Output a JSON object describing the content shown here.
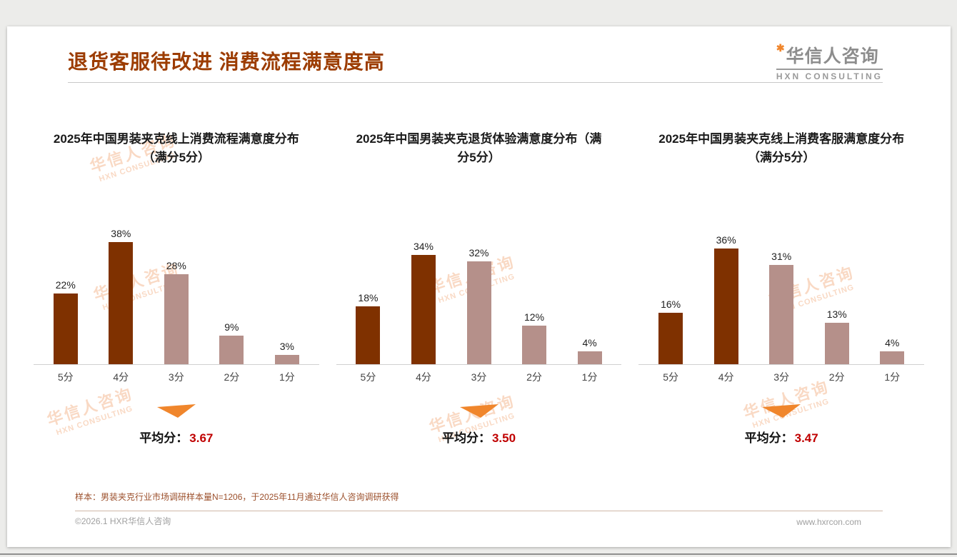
{
  "page": {
    "title": "退货客服待改进 消费流程满意度高",
    "logo": {
      "star": "✱",
      "cn": "华信人咨询",
      "en": "HXN CONSULTING"
    },
    "watermark": {
      "cn": "华信人咨询",
      "en": "HXN CONSULTING"
    },
    "footnote": "样本：男装夹克行业市场调研样本量N=1206，于2025年11月通过华信人咨询调研获得",
    "copyright": "©2026.1 HXR华信人咨询",
    "website": "www.hxrcon.com"
  },
  "colors": {
    "bar_dark": "#7f3100",
    "bar_light": "#b5908a",
    "accent_orange": "#f0862c",
    "value_red": "#c00000",
    "title_brown": "#9c3c00"
  },
  "chart_data": [
    {
      "type": "bar",
      "title": "2025年中国男装夹克线上消费流程满意度分布（满分5分）",
      "categories": [
        "5分",
        "4分",
        "3分",
        "2分",
        "1分"
      ],
      "values": [
        22,
        38,
        28,
        9,
        3
      ],
      "value_labels": [
        "22%",
        "38%",
        "28%",
        "9%",
        "3%"
      ],
      "unit": "%",
      "ylim": [
        0,
        40
      ],
      "grid": false,
      "legend": false,
      "bar_colors": [
        "dark",
        "dark",
        "light",
        "light",
        "light"
      ],
      "average_label": "平均分：",
      "average": "3.67"
    },
    {
      "type": "bar",
      "title": "2025年中国男装夹克退货体验满意度分布（满分5分）",
      "categories": [
        "5分",
        "4分",
        "3分",
        "2分",
        "1分"
      ],
      "values": [
        18,
        34,
        32,
        12,
        4
      ],
      "value_labels": [
        "18%",
        "34%",
        "32%",
        "12%",
        "4%"
      ],
      "unit": "%",
      "ylim": [
        0,
        40
      ],
      "grid": false,
      "legend": false,
      "bar_colors": [
        "dark",
        "dark",
        "light",
        "light",
        "light"
      ],
      "average_label": "平均分：",
      "average": "3.50"
    },
    {
      "type": "bar",
      "title": "2025年中国男装夹克线上消费客服满意度分布（满分5分）",
      "categories": [
        "5分",
        "4分",
        "3分",
        "2分",
        "1分"
      ],
      "values": [
        16,
        36,
        31,
        13,
        4
      ],
      "value_labels": [
        "16%",
        "36%",
        "31%",
        "13%",
        "4%"
      ],
      "unit": "%",
      "ylim": [
        0,
        40
      ],
      "grid": false,
      "legend": false,
      "bar_colors": [
        "dark",
        "dark",
        "light",
        "light",
        "light"
      ],
      "average_label": "平均分：",
      "average": "3.47"
    }
  ]
}
